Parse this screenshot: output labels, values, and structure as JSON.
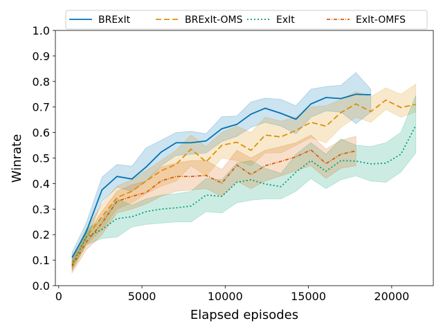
{
  "chart_data": {
    "type": "line",
    "title": "",
    "xlabel": "Elapsed episodes",
    "ylabel": "Winrate",
    "xlim": [
      -200,
      22500
    ],
    "ylim": [
      0.0,
      1.0
    ],
    "xticks": [
      0,
      5000,
      10000,
      15000,
      20000
    ],
    "xtick_labels": [
      "0",
      "5000",
      "10000",
      "15000",
      "20000"
    ],
    "yticks": [
      0.0,
      0.1,
      0.2,
      0.3,
      0.4,
      0.5,
      0.6,
      0.7,
      0.8,
      0.9,
      1.0
    ],
    "ytick_labels": [
      "0.0",
      "0.1",
      "0.2",
      "0.3",
      "0.4",
      "0.5",
      "0.6",
      "0.7",
      "0.8",
      "0.9",
      "1.0"
    ],
    "grid": false,
    "legend_position": "top",
    "series": [
      {
        "name": "BRExIt",
        "color": "#0072b2",
        "dash": "solid",
        "x": [
          800,
          1650,
          2600,
          3500,
          4400,
          5250,
          6150,
          7050,
          7950,
          8850,
          9800,
          10700,
          11550,
          12400,
          13350,
          14250,
          15150,
          16050,
          16950,
          17850,
          18750
        ],
        "y": [
          0.11,
          0.21,
          0.375,
          0.428,
          0.418,
          0.465,
          0.523,
          0.56,
          0.56,
          0.567,
          0.615,
          0.632,
          0.672,
          0.695,
          0.675,
          0.652,
          0.712,
          0.737,
          0.733,
          0.75,
          0.748
        ],
        "lower": [
          0.09,
          0.18,
          0.33,
          0.385,
          0.37,
          0.41,
          0.47,
          0.51,
          0.515,
          0.52,
          0.565,
          0.585,
          0.62,
          0.64,
          0.625,
          0.595,
          0.66,
          0.685,
          0.68,
          0.635,
          0.68
        ],
        "upper": [
          0.13,
          0.245,
          0.425,
          0.475,
          0.468,
          0.54,
          0.57,
          0.6,
          0.605,
          0.595,
          0.662,
          0.665,
          0.72,
          0.735,
          0.73,
          0.705,
          0.77,
          0.78,
          0.785,
          0.835,
          0.77
        ]
      },
      {
        "name": "BRExIt-OMS",
        "color": "#de8f05",
        "dash": "8,4",
        "x": [
          800,
          1650,
          2600,
          3500,
          4400,
          5250,
          6150,
          7050,
          7950,
          8850,
          9800,
          10700,
          11550,
          12400,
          13350,
          14250,
          15150,
          16050,
          16950,
          17850,
          18750,
          19650,
          20550,
          21450
        ],
        "y": [
          0.085,
          0.19,
          0.27,
          0.345,
          0.37,
          0.41,
          0.45,
          0.475,
          0.535,
          0.485,
          0.55,
          0.562,
          0.53,
          0.59,
          0.583,
          0.608,
          0.64,
          0.625,
          0.678,
          0.712,
          0.682,
          0.727,
          0.698,
          0.71
        ],
        "lower": [
          0.06,
          0.16,
          0.22,
          0.3,
          0.325,
          0.36,
          0.39,
          0.41,
          0.47,
          0.43,
          0.5,
          0.49,
          0.47,
          0.52,
          0.52,
          0.55,
          0.58,
          0.56,
          0.62,
          0.66,
          0.64,
          0.69,
          0.66,
          0.68
        ],
        "upper": [
          0.1,
          0.22,
          0.32,
          0.39,
          0.415,
          0.45,
          0.49,
          0.53,
          0.59,
          0.545,
          0.6,
          0.625,
          0.6,
          0.66,
          0.645,
          0.66,
          0.7,
          0.705,
          0.73,
          0.76,
          0.74,
          0.775,
          0.75,
          0.79
        ]
      },
      {
        "name": "ExIt",
        "color": "#029e73",
        "dash": "2,3",
        "x": [
          800,
          1650,
          2600,
          3500,
          4400,
          5250,
          6150,
          7050,
          7950,
          8850,
          9800,
          10700,
          11550,
          12400,
          13350,
          14250,
          15150,
          16050,
          16950,
          17850,
          18750,
          19650,
          20550,
          21450
        ],
        "y": [
          0.08,
          0.19,
          0.22,
          0.263,
          0.27,
          0.29,
          0.3,
          0.305,
          0.312,
          0.355,
          0.35,
          0.405,
          0.415,
          0.398,
          0.388,
          0.445,
          0.49,
          0.448,
          0.49,
          0.488,
          0.477,
          0.48,
          0.515,
          0.628
        ],
        "lower": [
          0.06,
          0.16,
          0.185,
          0.19,
          0.23,
          0.24,
          0.245,
          0.25,
          0.25,
          0.29,
          0.285,
          0.325,
          0.335,
          0.34,
          0.34,
          0.37,
          0.42,
          0.38,
          0.415,
          0.43,
          0.41,
          0.405,
          0.445,
          0.52
        ],
        "upper": [
          0.1,
          0.22,
          0.26,
          0.34,
          0.315,
          0.34,
          0.355,
          0.36,
          0.37,
          0.42,
          0.415,
          0.48,
          0.49,
          0.46,
          0.44,
          0.515,
          0.56,
          0.515,
          0.575,
          0.55,
          0.545,
          0.56,
          0.6,
          0.745
        ]
      },
      {
        "name": "ExIt-OMFS",
        "color": "#d55e00",
        "dash": "5,2,1,2",
        "x": [
          800,
          1650,
          2600,
          3500,
          4400,
          5250,
          6150,
          7050,
          7950,
          8850,
          9800,
          10700,
          11550,
          12400,
          13350,
          14250,
          15150,
          16050,
          16950,
          17850
        ],
        "y": [
          0.075,
          0.17,
          0.245,
          0.33,
          0.35,
          0.365,
          0.41,
          0.428,
          0.428,
          0.432,
          0.402,
          0.472,
          0.435,
          0.47,
          0.487,
          0.505,
          0.532,
          0.478,
          0.515,
          0.528
        ],
        "lower": [
          0.05,
          0.14,
          0.2,
          0.285,
          0.3,
          0.32,
          0.35,
          0.37,
          0.375,
          0.38,
          0.35,
          0.41,
          0.38,
          0.41,
          0.43,
          0.45,
          0.47,
          0.42,
          0.46,
          0.47
        ],
        "upper": [
          0.1,
          0.2,
          0.29,
          0.37,
          0.395,
          0.41,
          0.465,
          0.48,
          0.49,
          0.49,
          0.455,
          0.53,
          0.5,
          0.53,
          0.545,
          0.56,
          0.59,
          0.535,
          0.57,
          0.585
        ]
      }
    ]
  }
}
